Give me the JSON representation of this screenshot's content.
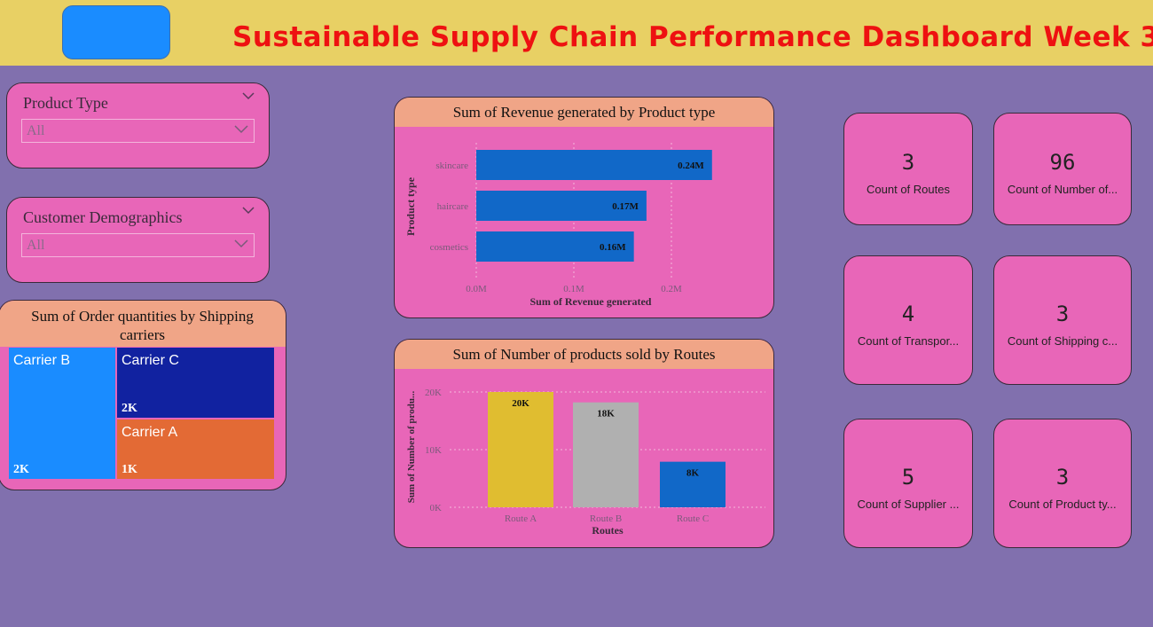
{
  "header": {
    "title": "Sustainable Supply Chain Performance Dashboard Week 3",
    "title_color": "#ee1111",
    "background": "#e8d064"
  },
  "filters": [
    {
      "label": "Product Type",
      "value": "All"
    },
    {
      "label": "Customer Demographics",
      "value": "All"
    }
  ],
  "kpis": [
    {
      "value": "3",
      "label": "Count of Routes"
    },
    {
      "value": "96",
      "label": "Count of Number of..."
    },
    {
      "value": "4",
      "label": "Count of Transpor..."
    },
    {
      "value": "3",
      "label": "Count of Shipping c..."
    },
    {
      "value": "5",
      "label": "Count of Supplier ..."
    },
    {
      "value": "3",
      "label": "Count of Product ty..."
    }
  ],
  "chart_data": [
    {
      "type": "bar",
      "orientation": "horizontal",
      "title": "Sum of Revenue generated by Product type",
      "xlabel": "Sum of Revenue generated",
      "ylabel": "Product type",
      "categories": [
        "skincare",
        "haircare",
        "cosmetics"
      ],
      "values": [
        241628,
        174455,
        161521
      ],
      "data_labels": [
        "0.24M",
        "0.17M",
        "0.16M"
      ],
      "x_ticks": [
        "0.0M",
        "0.1M",
        "0.2M"
      ],
      "xlim": [
        0,
        300000
      ],
      "grid": true,
      "bar_color": "#1168c8"
    },
    {
      "type": "bar",
      "orientation": "vertical",
      "title": "Sum of Number of products sold by Routes",
      "xlabel": "Routes",
      "ylabel": "Sum of Number of produ...",
      "categories": [
        "Route A",
        "Route B",
        "Route C"
      ],
      "values": [
        20000,
        18200,
        7900
      ],
      "data_labels": [
        "20K",
        "18K",
        "8K"
      ],
      "y_ticks": [
        "0K",
        "10K",
        "20K"
      ],
      "ylim": [
        0,
        20000
      ],
      "grid": true,
      "bar_colors": [
        "#e0bd30",
        "#b0b0b0",
        "#1168c8"
      ]
    },
    {
      "type": "treemap",
      "title": "Sum of Order quantities by Shipping carriers",
      "items": [
        {
          "name": "Carrier B",
          "value": 1900,
          "label": "2K",
          "color": "#1a8cff"
        },
        {
          "name": "Carrier C",
          "value": 1700,
          "label": "2K",
          "color": "#1122a0"
        },
        {
          "name": "Carrier A",
          "value": 1400,
          "label": "1K",
          "color": "#e36a35"
        }
      ]
    }
  ]
}
